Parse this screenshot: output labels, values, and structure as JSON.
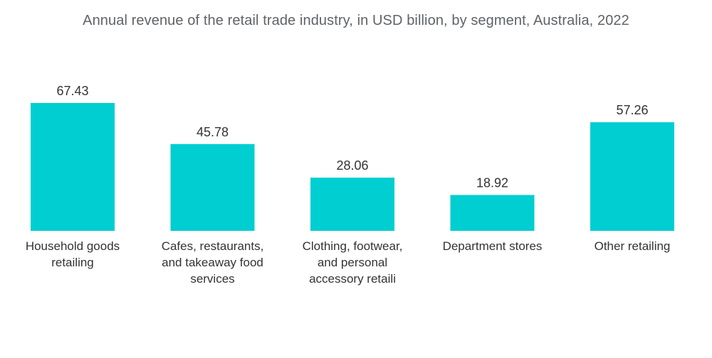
{
  "chart_data": {
    "type": "bar",
    "title": "Annual revenue of the retail trade industry, in USD billion, by segment, Australia, 2022",
    "categories": [
      [
        "Household goods",
        "retailing"
      ],
      [
        "Cafes, restaurants,",
        "and takeaway food",
        "services"
      ],
      [
        "Clothing, footwear,",
        "and personal",
        "accessory retaili"
      ],
      [
        "Department stores"
      ],
      [
        "Other retailing"
      ]
    ],
    "values": [
      67.43,
      45.78,
      28.06,
      18.92,
      57.26
    ],
    "value_labels": [
      "67.43",
      "45.78",
      "28.06",
      "18.92",
      "57.26"
    ],
    "bar_color": "#00CED1",
    "xlabel": "",
    "ylabel": "",
    "ylim": [
      0,
      67.43
    ],
    "grid": false,
    "legend": "none"
  }
}
